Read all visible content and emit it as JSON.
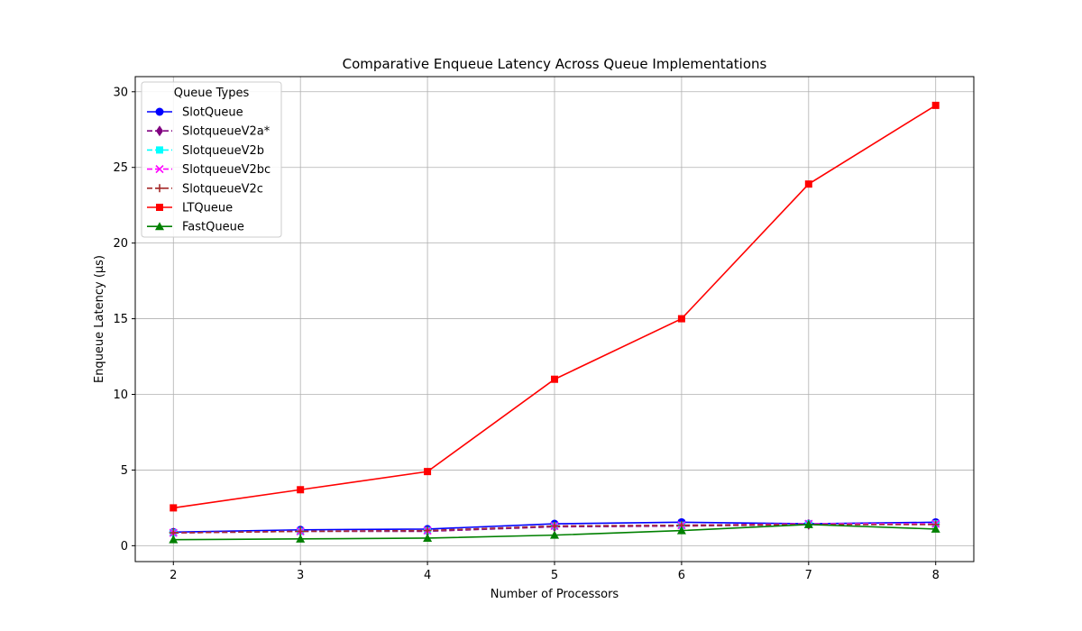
{
  "chart_data": {
    "type": "line",
    "title": "Comparative Enqueue Latency Across Queue Implementations",
    "xlabel": "Number of Processors",
    "ylabel": "Enqueue Latency (µs)",
    "x": [
      2,
      3,
      4,
      5,
      6,
      7,
      8
    ],
    "xlim": [
      1.7,
      8.3
    ],
    "ylim": [
      -1.05,
      31.0
    ],
    "xticks": [
      2,
      3,
      4,
      5,
      6,
      7,
      8
    ],
    "yticks": [
      0,
      5,
      10,
      15,
      20,
      25,
      30
    ],
    "grid": true,
    "legend": {
      "title": "Queue Types",
      "placement": "top-left"
    },
    "series": [
      {
        "name": "SlotQueue",
        "color": "#0000ff",
        "linestyle": "solid",
        "marker": "circle",
        "values": [
          0.9,
          1.05,
          1.1,
          1.45,
          1.55,
          1.45,
          1.55
        ]
      },
      {
        "name": "SlotqueueV2a*",
        "color": "#800080",
        "linestyle": "dashed",
        "marker": "diamond",
        "values": [
          0.85,
          0.95,
          0.95,
          1.25,
          1.3,
          1.4,
          1.4
        ]
      },
      {
        "name": "SlotqueueV2b",
        "color": "#00ffff",
        "linestyle": "dashed",
        "marker": "square",
        "values": [
          0.85,
          0.95,
          1.0,
          1.3,
          1.35,
          1.45,
          1.45
        ]
      },
      {
        "name": "SlotqueueV2bc",
        "color": "#ff00ff",
        "linestyle": "dashed",
        "marker": "x",
        "values": [
          0.85,
          0.95,
          1.0,
          1.3,
          1.35,
          1.45,
          1.45
        ]
      },
      {
        "name": "SlotqueueV2c",
        "color": "#a52a2a",
        "linestyle": "dashed",
        "marker": "plus",
        "values": [
          0.85,
          0.95,
          1.0,
          1.3,
          1.35,
          1.4,
          1.4
        ]
      },
      {
        "name": "LTQueue",
        "color": "#ff0000",
        "linestyle": "solid",
        "marker": "square",
        "values": [
          2.5,
          3.7,
          4.9,
          11.0,
          15.0,
          23.9,
          29.1
        ]
      },
      {
        "name": "FastQueue",
        "color": "#008000",
        "linestyle": "solid",
        "marker": "triangle",
        "values": [
          0.4,
          0.45,
          0.5,
          0.7,
          1.0,
          1.4,
          1.1
        ]
      }
    ]
  }
}
